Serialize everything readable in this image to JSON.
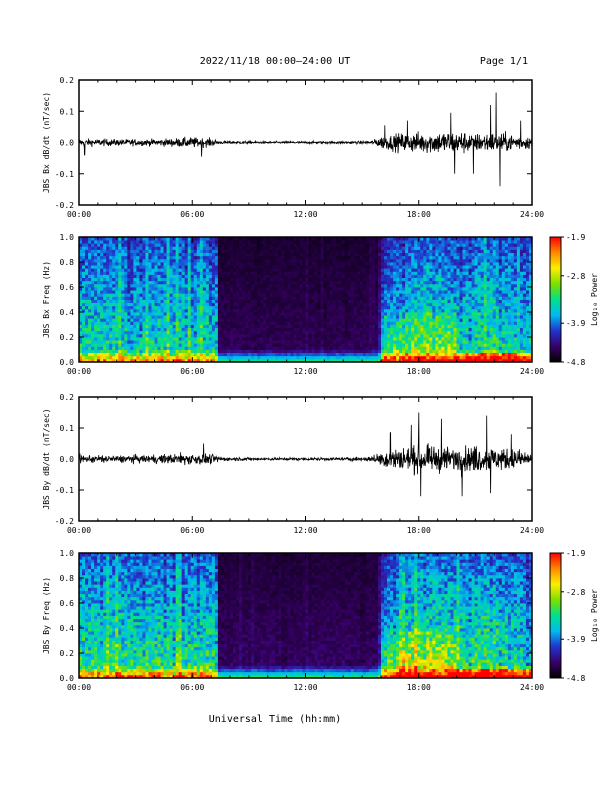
{
  "header": {
    "title": "2022/11/18  00:00–24:00 UT",
    "page": "Page 1/1"
  },
  "x_axis_label": "Universal Time (hh:mm)",
  "colors": {
    "colormap": [
      "#000000",
      "#3a006a",
      "#2233cc",
      "#00bbee",
      "#00e08a",
      "#7be000",
      "#ffee00",
      "#ff8800",
      "#ff0000"
    ],
    "trace": "#000000",
    "frame": "#000000"
  },
  "chart_data": [
    {
      "type": "line",
      "ylabel": "JBS Bx dB/dt (nT/sec)",
      "xlim": [
        0,
        24
      ],
      "ylim": [
        -0.2,
        0.2
      ],
      "x_ticks": [
        "00:00",
        "06:00",
        "12:00",
        "18:00",
        "24:00"
      ],
      "y_ticks": [
        "-0.2",
        "-0.1",
        "0.0",
        "0.1",
        "0.2"
      ],
      "envelope": {
        "hours": [
          0,
          2,
          4,
          6,
          7,
          7.5,
          10,
          14,
          15.5,
          16,
          17,
          18,
          19,
          20,
          21,
          22,
          23,
          24
        ],
        "amplitude": [
          0.018,
          0.016,
          0.016,
          0.025,
          0.02,
          0.008,
          0.005,
          0.006,
          0.008,
          0.03,
          0.045,
          0.05,
          0.055,
          0.06,
          0.045,
          0.05,
          0.04,
          0.03
        ]
      },
      "spikes": [
        [
          0.3,
          -0.04
        ],
        [
          6.5,
          -0.045
        ],
        [
          16.2,
          0.055
        ],
        [
          17.4,
          0.07
        ],
        [
          19.7,
          0.095
        ],
        [
          19.9,
          -0.1
        ],
        [
          20.9,
          -0.1
        ],
        [
          21.8,
          0.12
        ],
        [
          22.1,
          0.16
        ],
        [
          22.3,
          -0.14
        ],
        [
          23.4,
          0.07
        ]
      ]
    },
    {
      "type": "heatmap",
      "ylabel": "JBS Bx Freq (Hz)",
      "xlim": [
        0,
        24
      ],
      "ylim": [
        0,
        1.0
      ],
      "x_ticks": [
        "00:00",
        "06:00",
        "12:00",
        "18:00",
        "24:00"
      ],
      "y_ticks": [
        "0.0",
        "0.2",
        "0.4",
        "0.6",
        "0.8",
        "1.0"
      ],
      "colorbar": {
        "label": "Log₁₀ Power",
        "ticks": [
          "-1.9",
          "-2.8",
          "-3.9",
          "-4.8"
        ],
        "range": [
          -4.8,
          -1.9
        ]
      },
      "activity": {
        "hours": [
          0,
          7.3,
          7.4,
          15.8,
          16.2,
          17.5,
          18.5,
          20,
          22,
          24
        ],
        "level": [
          0.55,
          0.55,
          0.12,
          0.12,
          0.45,
          0.55,
          0.6,
          0.55,
          0.6,
          0.45
        ]
      }
    },
    {
      "type": "line",
      "ylabel": "JBS By dB/dt (nT/sec)",
      "xlim": [
        0,
        24
      ],
      "ylim": [
        -0.2,
        0.2
      ],
      "x_ticks": [
        "00:00",
        "06:00",
        "12:00",
        "18:00",
        "24:00"
      ],
      "y_ticks": [
        "-0.2",
        "-0.1",
        "0.0",
        "0.1",
        "0.2"
      ],
      "envelope": {
        "hours": [
          0,
          2,
          4,
          6,
          7,
          7.5,
          10,
          14,
          15.5,
          16,
          17,
          18,
          19,
          20,
          21,
          22,
          23,
          24
        ],
        "amplitude": [
          0.02,
          0.018,
          0.02,
          0.03,
          0.025,
          0.01,
          0.006,
          0.008,
          0.012,
          0.04,
          0.06,
          0.065,
          0.06,
          0.06,
          0.065,
          0.06,
          0.05,
          0.035
        ]
      },
      "spikes": [
        [
          6.6,
          0.05
        ],
        [
          16.5,
          0.085
        ],
        [
          17.6,
          0.11
        ],
        [
          18.0,
          0.15
        ],
        [
          18.1,
          -0.12
        ],
        [
          19.2,
          0.13
        ],
        [
          20.3,
          -0.12
        ],
        [
          21.6,
          0.14
        ],
        [
          21.8,
          -0.11
        ],
        [
          22.9,
          0.08
        ]
      ]
    },
    {
      "type": "heatmap",
      "ylabel": "JBS By Freq (Hz)",
      "xlim": [
        0,
        24
      ],
      "ylim": [
        0,
        1.0
      ],
      "x_ticks": [
        "00:00",
        "06:00",
        "12:00",
        "18:00",
        "24:00"
      ],
      "y_ticks": [
        "0.0",
        "0.2",
        "0.4",
        "0.6",
        "0.8",
        "1.0"
      ],
      "colorbar": {
        "label": "Log₁₀ Power",
        "ticks": [
          "-1.9",
          "-2.8",
          "-3.9",
          "-4.8"
        ],
        "range": [
          -4.8,
          -1.9
        ]
      },
      "activity": {
        "hours": [
          0,
          7.3,
          7.4,
          15.8,
          16.2,
          17.5,
          18.5,
          20,
          22,
          24
        ],
        "level": [
          0.6,
          0.6,
          0.14,
          0.14,
          0.5,
          0.62,
          0.66,
          0.6,
          0.65,
          0.5
        ]
      }
    }
  ]
}
